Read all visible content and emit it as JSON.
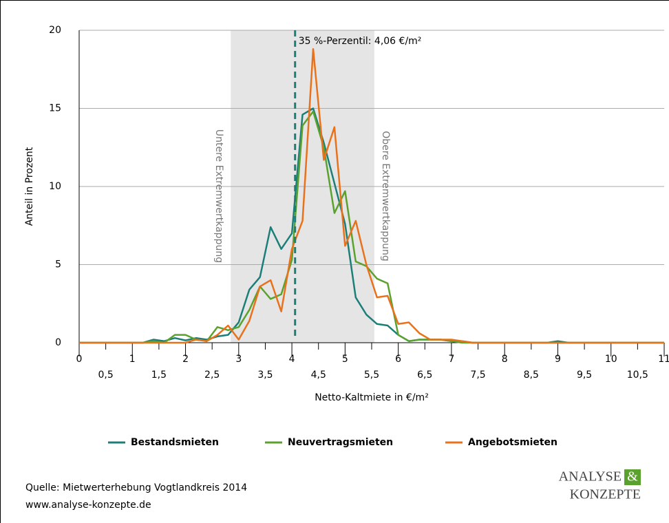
{
  "chart_data": {
    "type": "line",
    "xlabel": "Netto-Kaltmiete in €/m²",
    "ylabel": "Anteil in Prozent",
    "x": [
      0,
      0.2,
      0.4,
      0.6,
      0.8,
      1,
      1.2,
      1.4,
      1.6,
      1.8,
      2,
      2.2,
      2.4,
      2.6,
      2.8,
      3,
      3.2,
      3.4,
      3.6,
      3.8,
      4,
      4.2,
      4.4,
      4.6,
      4.8,
      5,
      5.2,
      5.4,
      5.6,
      5.8,
      6,
      6.2,
      6.4,
      6.6,
      6.8,
      7,
      7.2,
      7.4,
      7.6,
      7.8,
      8,
      8.2,
      8.4,
      8.6,
      8.8,
      9,
      9.2,
      9.4,
      9.6,
      9.8,
      10,
      10.2,
      10.4,
      10.6,
      10.8,
      11
    ],
    "series": [
      {
        "name": "Bestandsmieten",
        "color": "#1b7f78",
        "values": [
          0,
          0,
          0,
          0,
          0,
          0,
          0,
          0.2,
          0.1,
          0.3,
          0.15,
          0.3,
          0.2,
          0.4,
          0.5,
          1.3,
          3.4,
          4.2,
          7.4,
          6.0,
          7.0,
          14.6,
          15.0,
          12.8,
          10.2,
          7.6,
          2.9,
          1.8,
          1.2,
          1.1,
          0.5,
          0.1,
          0.2,
          0.2,
          0.2,
          0.1,
          0.1,
          0,
          0,
          0,
          0,
          0,
          0,
          0,
          0,
          0.1,
          0,
          0,
          0,
          0,
          0,
          0,
          0,
          0,
          0,
          0
        ]
      },
      {
        "name": "Neuvertragsmieten",
        "color": "#5ba12e",
        "values": [
          0,
          0,
          0,
          0,
          0,
          0,
          0,
          0.1,
          0,
          0.5,
          0.5,
          0.2,
          0.1,
          1.0,
          0.8,
          1.0,
          2.1,
          3.6,
          2.8,
          3.1,
          5.3,
          13.9,
          14.8,
          12.5,
          8.3,
          9.7,
          5.2,
          4.9,
          4.1,
          3.8,
          0.5,
          0.1,
          0.2,
          0.2,
          0.2,
          0.1,
          0,
          0,
          0,
          0,
          0,
          0,
          0,
          0,
          0,
          0,
          0,
          0,
          0,
          0,
          0,
          0,
          0,
          0,
          0,
          0
        ]
      },
      {
        "name": "Angebotsmieten",
        "color": "#e8721c",
        "values": [
          0,
          0,
          0,
          0,
          0,
          0,
          0,
          0,
          0,
          0,
          0,
          0.2,
          0.1,
          0.5,
          1.1,
          0.2,
          1.4,
          3.6,
          4.0,
          2.0,
          6.0,
          7.8,
          18.8,
          11.7,
          13.8,
          6.2,
          7.8,
          5.0,
          2.9,
          3.0,
          1.2,
          1.3,
          0.6,
          0.2,
          0.2,
          0.2,
          0.1,
          0,
          0,
          0,
          0,
          0,
          0,
          0,
          0,
          0,
          0,
          0,
          0,
          0,
          0,
          0,
          0,
          0,
          0,
          0
        ]
      }
    ],
    "xlim": [
      0,
      11
    ],
    "xticks": [
      0,
      {
        "value": 0.5,
        "label": "0,5"
      },
      1,
      {
        "value": 1.5,
        "label": "1,5"
      },
      2,
      {
        "value": 2.5,
        "label": "2,5"
      },
      3,
      {
        "value": 3.5,
        "label": "3,5"
      },
      4,
      {
        "value": 4.5,
        "label": "4,5"
      },
      5,
      {
        "value": 5.5,
        "label": "5,5"
      },
      6,
      {
        "value": 6.5,
        "label": "6,5"
      },
      7,
      {
        "value": 7.5,
        "label": "7,5"
      },
      8,
      {
        "value": 8.5,
        "label": "8,5"
      },
      9,
      {
        "value": 9.5,
        "label": "9,5"
      },
      10,
      {
        "value": 10.5,
        "label": "10,5"
      },
      11
    ],
    "ylim": [
      0,
      20
    ],
    "yticks": [
      0,
      5,
      10,
      15,
      20
    ],
    "grid": true,
    "shaded_range": [
      2.85,
      5.55
    ],
    "percentile_x": 4.06,
    "percentile_label": "35 %-Perzentil: 4,06 €/m²",
    "lower_label": "Untere Extremwertkappung",
    "upper_label": "Obere Extremwertkappung",
    "legend": "bottom"
  },
  "footer": {
    "source": "Quelle: Mietwerterhebung Vogtlandkreis 2014",
    "url": "www.analyse-konzepte.de",
    "logo_top": "ANALYSE",
    "logo_amp": "&",
    "logo_bottom": "KONZEPTE"
  }
}
